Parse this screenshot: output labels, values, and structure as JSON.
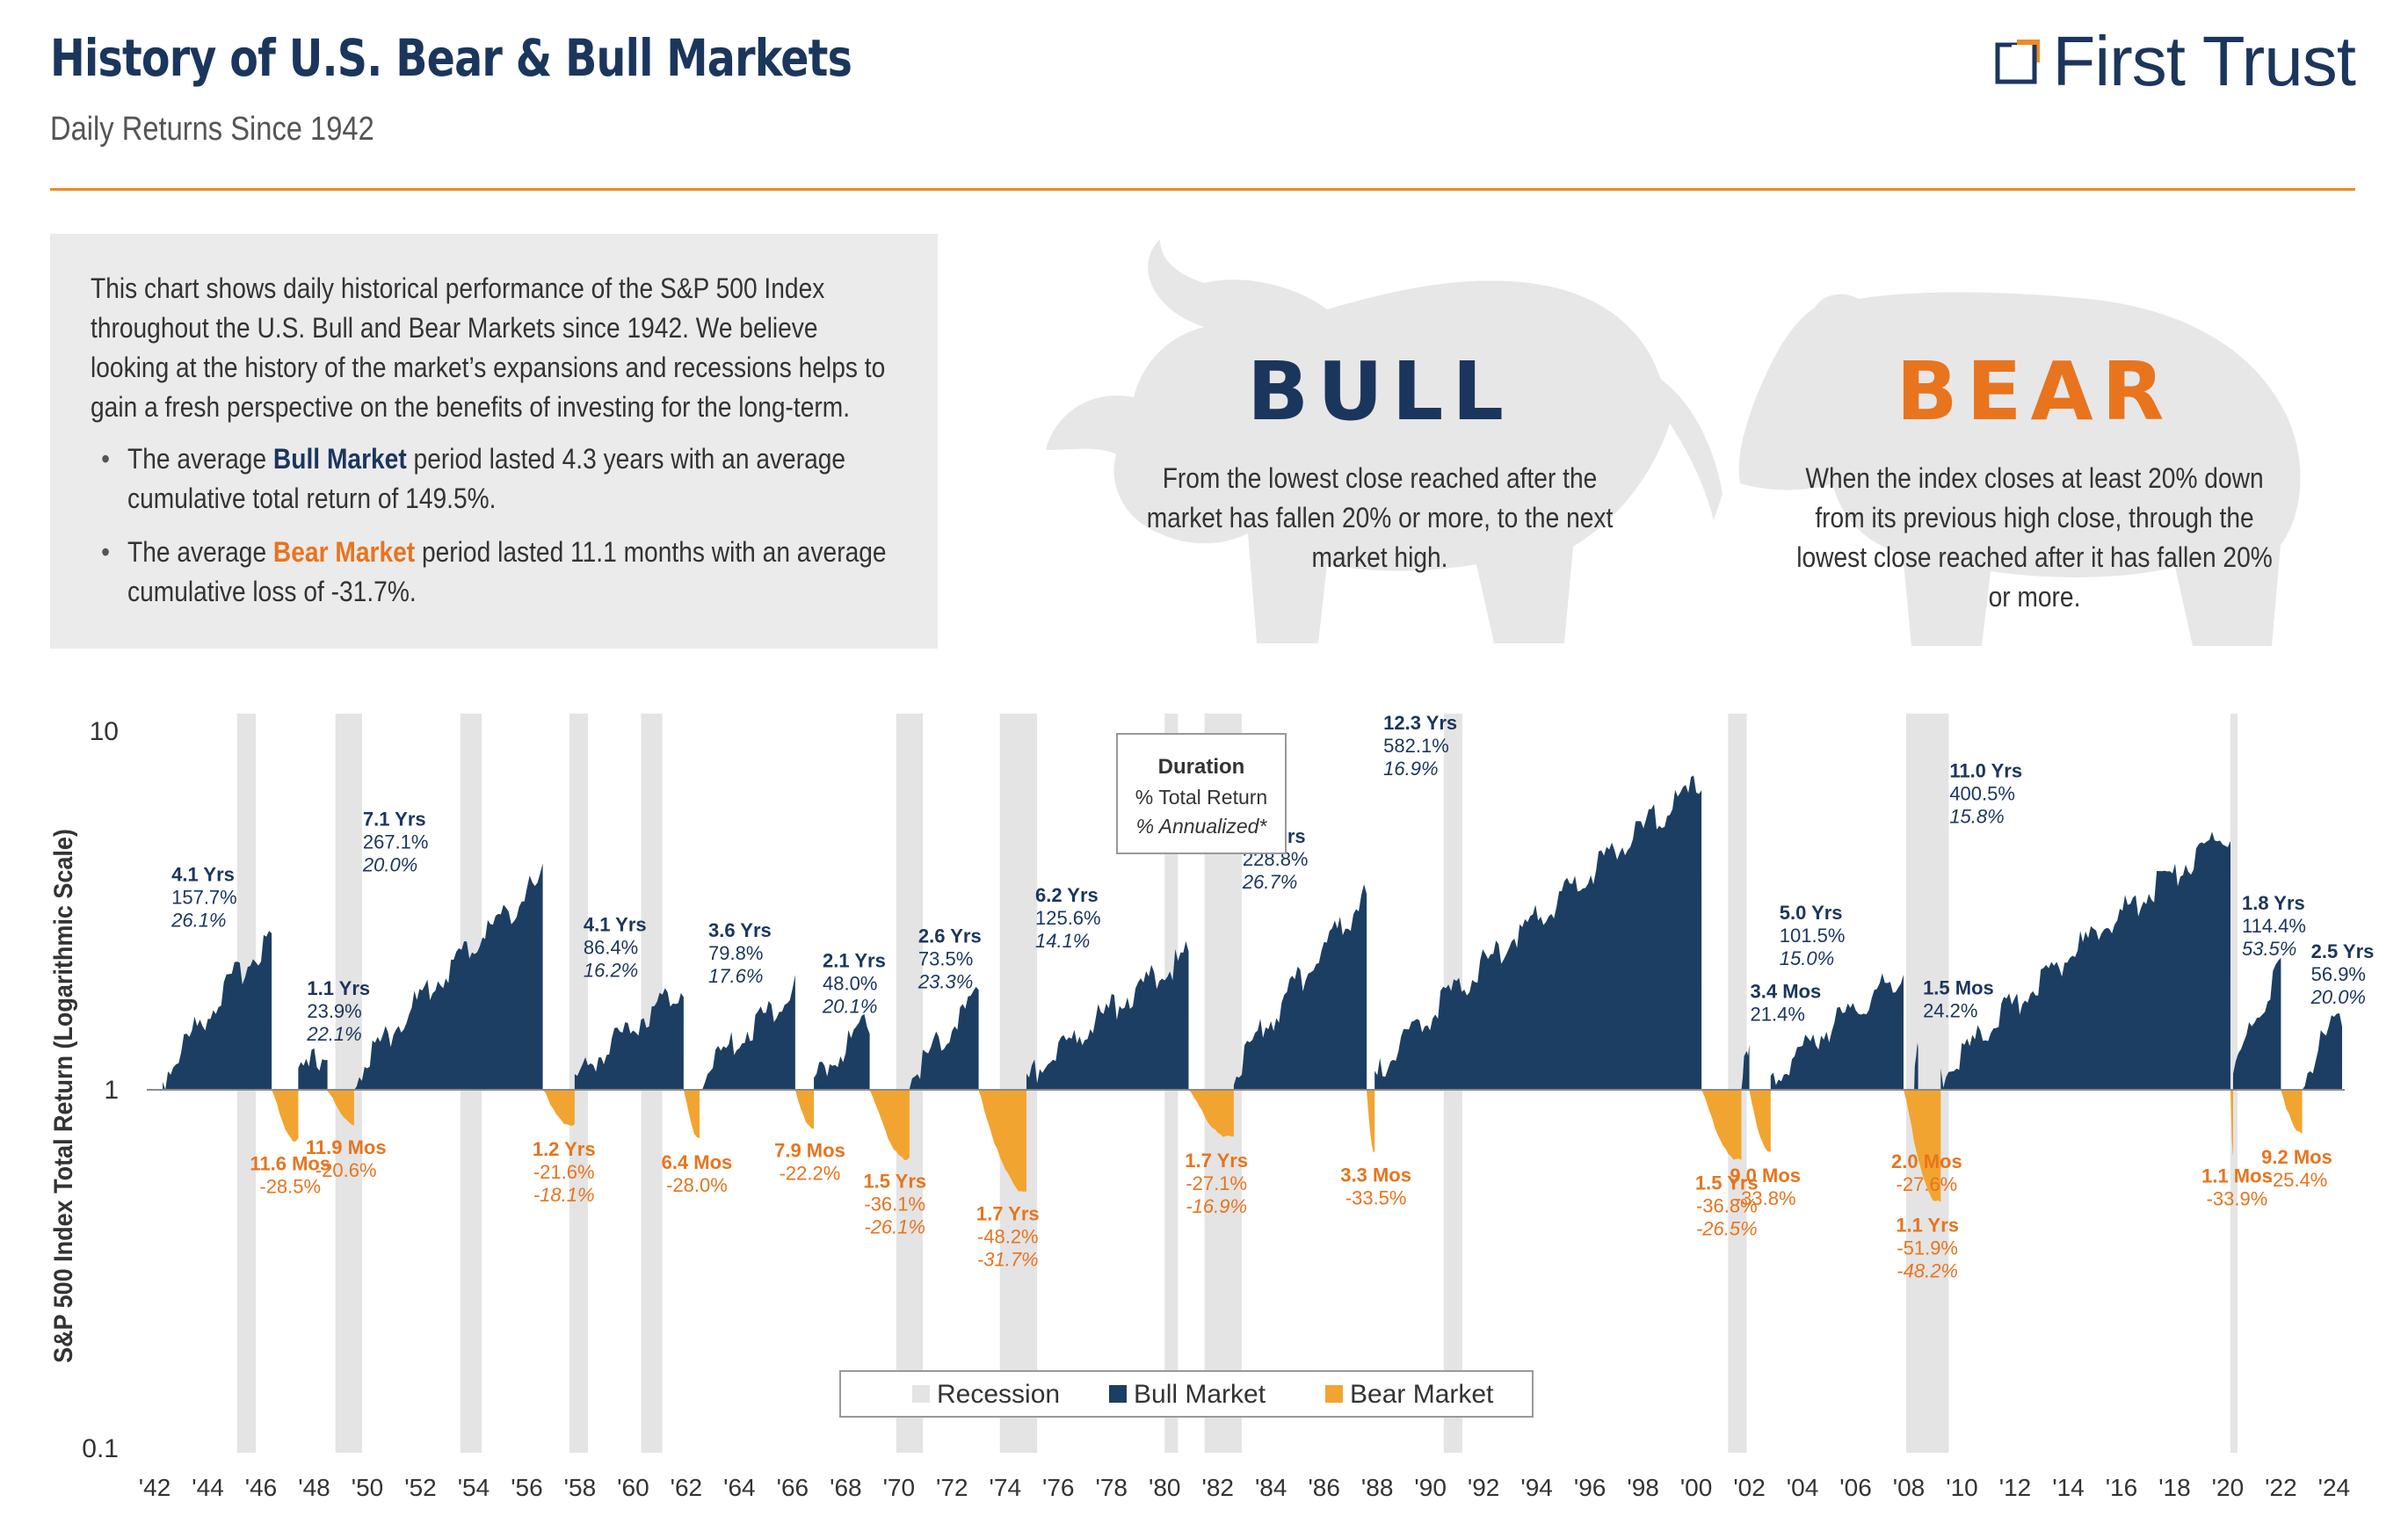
{
  "header": {
    "title": "History of U.S. Bear & Bull Markets",
    "subtitle": "Daily Returns Since 1942",
    "logo": "First Trust"
  },
  "info": {
    "paragraph": "This chart shows daily historical performance of the S&P 500 Index throughout the U.S. Bull and Bear Markets since 1942. We believe looking at the history of the market’s expansions and recessions helps to gain a fresh perspective on the benefits of investing for the long-term.",
    "bullet1_pre": "The average ",
    "bullet1_hl": "Bull Market",
    "bullet1_post": " period lasted 4.3 years with an average cumulative total return of 149.5%.",
    "bullet2_pre": "The average ",
    "bullet2_hl": "Bear Market",
    "bullet2_post": " period lasted 11.1 months with an average cumulative loss of -31.7%."
  },
  "definitions": {
    "bull_title": "BULL",
    "bull_text": "From the lowest close reached after the market has fallen 20% or more, to the next market high.",
    "bear_title": "BEAR",
    "bear_text": "When the index closes at least 20% down from its previous high close, through the lowest close reached after it has fallen 20% or more."
  },
  "colors": {
    "bull": "#1d3e63",
    "bear": "#f2a431",
    "recession": "#e4e4e4",
    "bear_text": "#e8741e",
    "bull_text": "#1b365d",
    "accent": "#f08a24"
  },
  "chart_data": {
    "type": "area",
    "ylabel": "S&P 500 Index Total Return (Logarithmic Scale)",
    "yscale": "log",
    "ylim": [
      0.1,
      10
    ],
    "yticks": [
      "10",
      "1",
      "0.1"
    ],
    "xlim": [
      1941.8,
      2024.4
    ],
    "xticks": [
      "'42",
      "'44",
      "'46",
      "'48",
      "'50",
      "'52",
      "'54",
      "'56",
      "'58",
      "'60",
      "'62",
      "'64",
      "'66",
      "'68",
      "'70",
      "'72",
      "'74",
      "'76",
      "'78",
      "'80",
      "'82",
      "'84",
      "'86",
      "'88",
      "'90",
      "'92",
      "'94",
      "'96",
      "'98",
      "'00",
      "'02",
      "'04",
      "'06",
      "'08",
      "'10",
      "'12",
      "'14",
      "'16",
      "'18",
      "'20",
      "'22",
      "'24"
    ],
    "legend": {
      "position": "bottom-center",
      "items": [
        "Recession",
        "Bull Market",
        "Bear Market"
      ]
    },
    "key_box": {
      "line1": "Duration",
      "line2": "% Total Return",
      "line3": "% Annualized*"
    },
    "recessions": [
      [
        1945.1,
        1945.8
      ],
      [
        1948.8,
        1949.8
      ],
      [
        1953.5,
        1954.3
      ],
      [
        1957.6,
        1958.3
      ],
      [
        1960.3,
        1961.1
      ],
      [
        1969.9,
        1970.9
      ],
      [
        1973.8,
        1975.2
      ],
      [
        1980.0,
        1980.5
      ],
      [
        1981.5,
        1982.9
      ],
      [
        1990.5,
        1991.2
      ],
      [
        2001.2,
        2001.9
      ],
      [
        2007.9,
        2009.5
      ],
      [
        2020.1,
        2020.3
      ]
    ],
    "bull_markets": [
      {
        "start": 1942.3,
        "end": 1946.4,
        "duration": "4.1 Yrs",
        "total": "157.7%",
        "annualized": "26.1%"
      },
      {
        "start": 1947.4,
        "end": 1948.5,
        "duration": "1.1 Yrs",
        "total": "23.9%",
        "annualized": "22.1%"
      },
      {
        "start": 1949.5,
        "end": 1956.6,
        "duration": "7.1 Yrs",
        "total": "267.1%",
        "annualized": "20.0%"
      },
      {
        "start": 1957.8,
        "end": 1961.9,
        "duration": "4.1 Yrs",
        "total": "86.4%",
        "annualized": "16.2%"
      },
      {
        "start": 1962.5,
        "end": 1966.1,
        "duration": "3.6 Yrs",
        "total": "79.8%",
        "annualized": "17.6%"
      },
      {
        "start": 1966.8,
        "end": 1968.9,
        "duration": "2.1 Yrs",
        "total": "48.0%",
        "annualized": "20.1%"
      },
      {
        "start": 1970.4,
        "end": 1973.0,
        "duration": "2.6 Yrs",
        "total": "73.5%",
        "annualized": "23.3%"
      },
      {
        "start": 1974.8,
        "end": 1980.9,
        "duration": "6.2 Yrs",
        "total": "125.6%",
        "annualized": "14.1%"
      },
      {
        "start": 1982.6,
        "end": 1987.6,
        "duration": "5.0 Yrs",
        "total": "228.8%",
        "annualized": "26.7%"
      },
      {
        "start": 1987.9,
        "end": 2000.2,
        "duration": "12.3 Yrs",
        "total": "582.1%",
        "annualized": "16.9%"
      },
      {
        "start": 2001.7,
        "end": 2002.0,
        "duration": "3.4 Mos",
        "total": "21.4%",
        "annualized": ""
      },
      {
        "start": 2002.8,
        "end": 2007.8,
        "duration": "5.0 Yrs",
        "total": "101.5%",
        "annualized": "15.0%"
      },
      {
        "start": 2008.2,
        "end": 2008.35,
        "duration": "1.5 Mos",
        "total": "24.2%",
        "annualized": ""
      },
      {
        "start": 2009.2,
        "end": 2020.1,
        "duration": "11.0 Yrs",
        "total": "400.5%",
        "annualized": "15.8%"
      },
      {
        "start": 2020.2,
        "end": 2022.0,
        "duration": "1.8 Yrs",
        "total": "114.4%",
        "annualized": "53.5%"
      },
      {
        "start": 2022.8,
        "end": 2024.3,
        "duration": "2.5 Yrs",
        "total": "56.9%",
        "annualized": "20.0%"
      }
    ],
    "bear_markets": [
      {
        "start": 1946.4,
        "end": 1947.4,
        "duration": "11.6 Mos",
        "total": "-28.5%",
        "annualized": ""
      },
      {
        "start": 1948.5,
        "end": 1949.5,
        "duration": "11.9 Mos",
        "total": "-20.6%",
        "annualized": ""
      },
      {
        "start": 1956.6,
        "end": 1957.8,
        "duration": "1.2 Yrs",
        "total": "-21.6%",
        "annualized": "-18.1%"
      },
      {
        "start": 1961.9,
        "end": 1962.5,
        "duration": "6.4 Mos",
        "total": "-28.0%",
        "annualized": ""
      },
      {
        "start": 1966.1,
        "end": 1966.8,
        "duration": "7.9 Mos",
        "total": "-22.2%",
        "annualized": ""
      },
      {
        "start": 1968.9,
        "end": 1970.4,
        "duration": "1.5 Yrs",
        "total": "-36.1%",
        "annualized": "-26.1%"
      },
      {
        "start": 1973.0,
        "end": 1974.8,
        "duration": "1.7 Yrs",
        "total": "-48.2%",
        "annualized": "-31.7%"
      },
      {
        "start": 1980.9,
        "end": 1982.6,
        "duration": "1.7 Yrs",
        "total": "-27.1%",
        "annualized": "-16.9%"
      },
      {
        "start": 1987.6,
        "end": 1987.9,
        "duration": "3.3 Mos",
        "total": "-33.5%",
        "annualized": ""
      },
      {
        "start": 2000.2,
        "end": 2001.7,
        "duration": "1.5 Yrs",
        "total": "-36.8%",
        "annualized": "-26.5%"
      },
      {
        "start": 2002.0,
        "end": 2002.8,
        "duration": "9.0 Mos",
        "total": "-33.8%",
        "annualized": ""
      },
      {
        "start": 2007.8,
        "end": 2009.2,
        "duration": "1.1 Yrs",
        "total": "-51.9%",
        "annualized": "-48.2%"
      },
      {
        "start": 2008.35,
        "end": 2008.6,
        "duration": "2.0 Mos",
        "total": "-27.6%",
        "annualized": ""
      },
      {
        "start": 2020.1,
        "end": 2020.2,
        "duration": "1.1 Mos",
        "total": "-33.9%",
        "annualized": ""
      },
      {
        "start": 2022.0,
        "end": 2022.8,
        "duration": "9.2 Mos",
        "total": "-25.4%",
        "annualized": ""
      }
    ]
  }
}
